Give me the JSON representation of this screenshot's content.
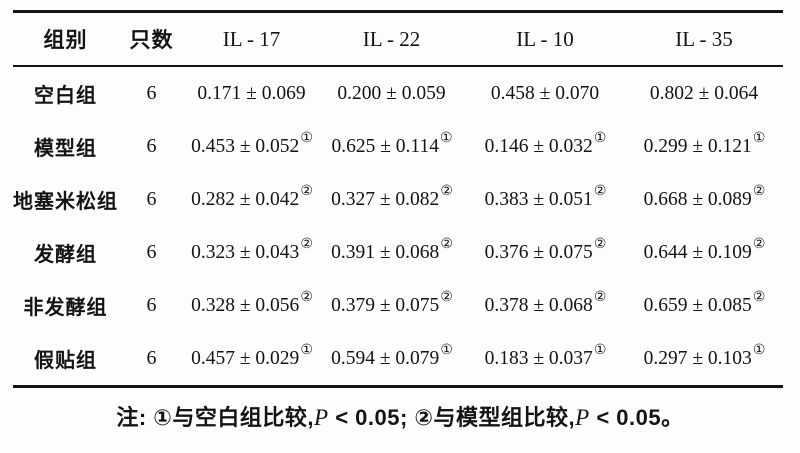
{
  "table": {
    "columns": [
      "组别",
      "只数",
      "IL - 17",
      "IL - 22",
      "IL - 10",
      "IL - 35"
    ],
    "rows": [
      {
        "group": "空白组",
        "n": "6",
        "cells": [
          {
            "value": "0.171 ± 0.069",
            "mark": ""
          },
          {
            "value": "0.200 ± 0.059",
            "mark": ""
          },
          {
            "value": "0.458 ± 0.070",
            "mark": ""
          },
          {
            "value": "0.802 ± 0.064",
            "mark": ""
          }
        ]
      },
      {
        "group": "模型组",
        "n": "6",
        "cells": [
          {
            "value": "0.453 ± 0.052",
            "mark": "①"
          },
          {
            "value": "0.625 ± 0.114",
            "mark": "①"
          },
          {
            "value": "0.146 ± 0.032",
            "mark": "①"
          },
          {
            "value": "0.299 ± 0.121",
            "mark": "①"
          }
        ]
      },
      {
        "group": "地塞米松组",
        "n": "6",
        "cells": [
          {
            "value": "0.282 ± 0.042",
            "mark": "②"
          },
          {
            "value": "0.327 ± 0.082",
            "mark": "②"
          },
          {
            "value": "0.383 ± 0.051",
            "mark": "②"
          },
          {
            "value": "0.668 ± 0.089",
            "mark": "②"
          }
        ]
      },
      {
        "group": "发酵组",
        "n": "6",
        "cells": [
          {
            "value": "0.323 ± 0.043",
            "mark": "②"
          },
          {
            "value": "0.391 ± 0.068",
            "mark": "②"
          },
          {
            "value": "0.376 ± 0.075",
            "mark": "②"
          },
          {
            "value": "0.644 ± 0.109",
            "mark": "②"
          }
        ]
      },
      {
        "group": "非发酵组",
        "n": "6",
        "cells": [
          {
            "value": "0.328 ± 0.056",
            "mark": "②"
          },
          {
            "value": "0.379 ± 0.075",
            "mark": "②"
          },
          {
            "value": "0.378 ± 0.068",
            "mark": "②"
          },
          {
            "value": "0.659 ± 0.085",
            "mark": "②"
          }
        ]
      },
      {
        "group": "假贴组",
        "n": "6",
        "cells": [
          {
            "value": "0.457 ± 0.029",
            "mark": "①"
          },
          {
            "value": "0.594 ± 0.079",
            "mark": "①"
          },
          {
            "value": "0.183 ± 0.037",
            "mark": "①"
          },
          {
            "value": "0.297 ± 0.103",
            "mark": "①"
          }
        ]
      }
    ]
  },
  "note": {
    "part1": "注: ①与空白组比较,",
    "p1": "P",
    "part2": " < 0.05; ②与模型组比较,",
    "p2": "P",
    "part3": " < 0.05。"
  },
  "chart_data": {
    "type": "table",
    "title": "",
    "columns": [
      "组别",
      "只数",
      "IL-17",
      "IL-22",
      "IL-10",
      "IL-35"
    ],
    "series": [
      {
        "name": "空白组",
        "n": 6,
        "IL-17": {
          "mean": 0.171,
          "sd": 0.069
        },
        "IL-22": {
          "mean": 0.2,
          "sd": 0.059
        },
        "IL-10": {
          "mean": 0.458,
          "sd": 0.07
        },
        "IL-35": {
          "mean": 0.802,
          "sd": 0.064
        }
      },
      {
        "name": "模型组",
        "n": 6,
        "IL-17": {
          "mean": 0.453,
          "sd": 0.052,
          "mark": "①"
        },
        "IL-22": {
          "mean": 0.625,
          "sd": 0.114,
          "mark": "①"
        },
        "IL-10": {
          "mean": 0.146,
          "sd": 0.032,
          "mark": "①"
        },
        "IL-35": {
          "mean": 0.299,
          "sd": 0.121,
          "mark": "①"
        }
      },
      {
        "name": "地塞米松组",
        "n": 6,
        "IL-17": {
          "mean": 0.282,
          "sd": 0.042,
          "mark": "②"
        },
        "IL-22": {
          "mean": 0.327,
          "sd": 0.082,
          "mark": "②"
        },
        "IL-10": {
          "mean": 0.383,
          "sd": 0.051,
          "mark": "②"
        },
        "IL-35": {
          "mean": 0.668,
          "sd": 0.089,
          "mark": "②"
        }
      },
      {
        "name": "发酵组",
        "n": 6,
        "IL-17": {
          "mean": 0.323,
          "sd": 0.043,
          "mark": "②"
        },
        "IL-22": {
          "mean": 0.391,
          "sd": 0.068,
          "mark": "②"
        },
        "IL-10": {
          "mean": 0.376,
          "sd": 0.075,
          "mark": "②"
        },
        "IL-35": {
          "mean": 0.644,
          "sd": 0.109,
          "mark": "②"
        }
      },
      {
        "name": "非发酵组",
        "n": 6,
        "IL-17": {
          "mean": 0.328,
          "sd": 0.056,
          "mark": "②"
        },
        "IL-22": {
          "mean": 0.379,
          "sd": 0.075,
          "mark": "②"
        },
        "IL-10": {
          "mean": 0.378,
          "sd": 0.068,
          "mark": "②"
        },
        "IL-35": {
          "mean": 0.659,
          "sd": 0.085,
          "mark": "②"
        }
      },
      {
        "name": "假贴组",
        "n": 6,
        "IL-17": {
          "mean": 0.457,
          "sd": 0.029,
          "mark": "①"
        },
        "IL-22": {
          "mean": 0.594,
          "sd": 0.079,
          "mark": "①"
        },
        "IL-10": {
          "mean": 0.183,
          "sd": 0.037,
          "mark": "①"
        },
        "IL-35": {
          "mean": 0.297,
          "sd": 0.103,
          "mark": "①"
        }
      }
    ],
    "footnote": "注: ①与空白组比较,P < 0.05; ②与模型组比较,P < 0.05。"
  }
}
